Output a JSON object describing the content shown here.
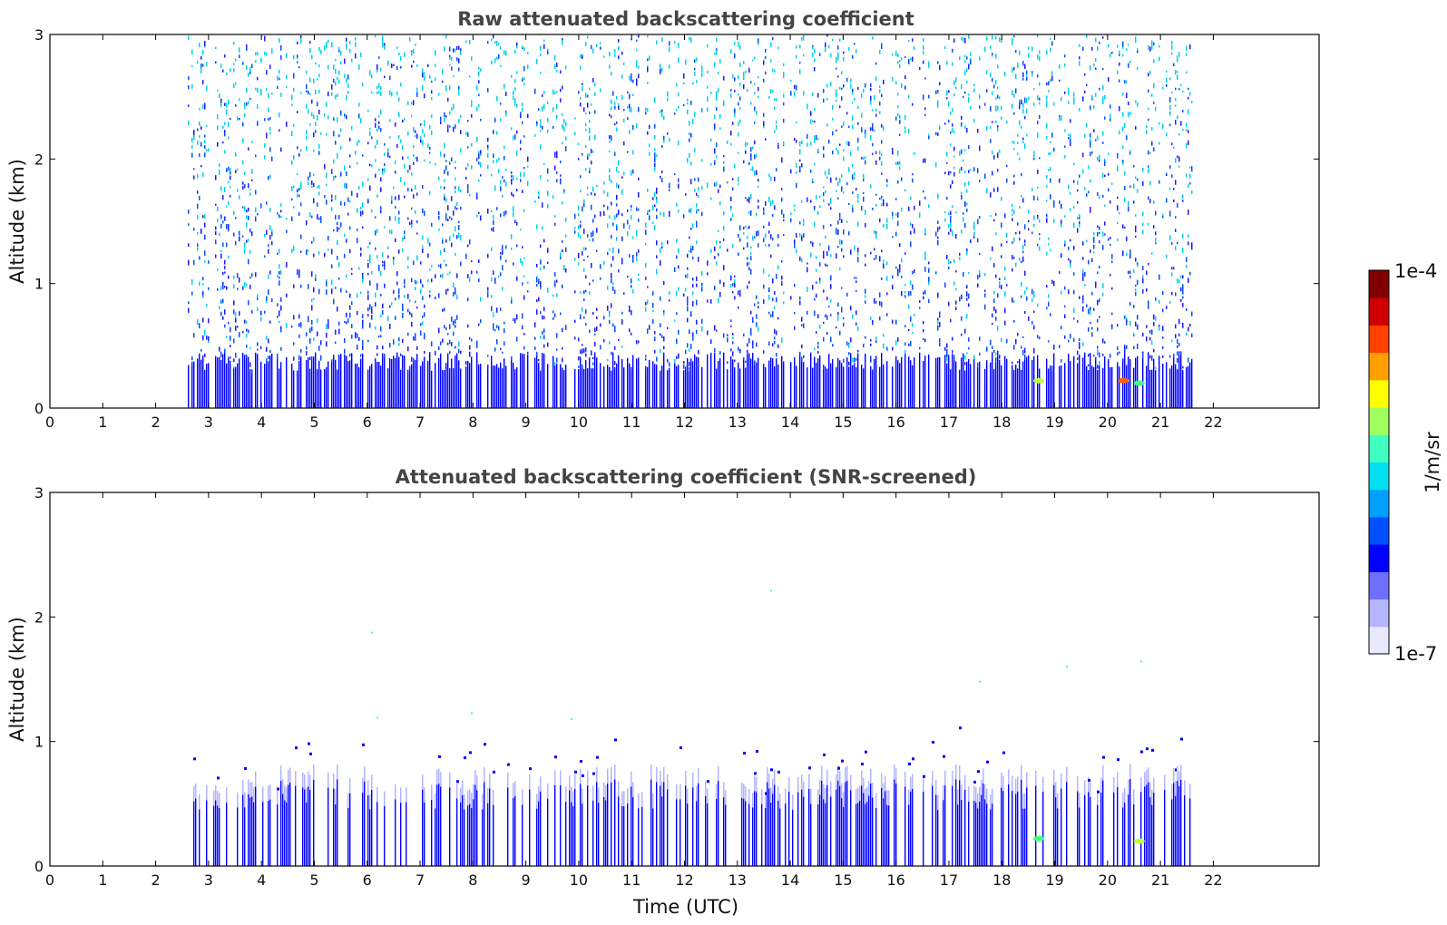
{
  "chart_data": [
    {
      "type": "heatmap",
      "title": "Raw attenuated backscattering coefficient",
      "xlabel": "",
      "ylabel": "Altitude (km)",
      "xlim": [
        0,
        24
      ],
      "ylim": [
        0,
        3
      ],
      "xticks": [
        0,
        1,
        2,
        3,
        4,
        5,
        6,
        7,
        8,
        9,
        10,
        11,
        12,
        13,
        14,
        15,
        16,
        17,
        18,
        19,
        20,
        21,
        22
      ],
      "xtick_labels": [
        "0",
        "1",
        "2",
        "3",
        "4",
        "5",
        "6",
        "7",
        "8",
        "9",
        "10",
        "11",
        "12",
        "13",
        "14",
        "15",
        "16",
        "17",
        "18",
        "19",
        "20",
        "21",
        "22"
      ],
      "yticks": [
        0,
        1,
        2,
        3
      ],
      "ytick_labels": [
        "0",
        "1",
        "2",
        "3"
      ],
      "data_time_range_utc": [
        2.6,
        21.6
      ],
      "description_of_field": "dense vertical profiles up to 3 km; strong blue below ~0.4 km, speckled blue/cyan aloft",
      "hotspots": [
        {
          "time": 18.7,
          "altitude": 0.22,
          "level": "yellow-green"
        },
        {
          "time": 20.3,
          "altitude": 0.22,
          "level": "orange-red"
        },
        {
          "time": 20.6,
          "altitude": 0.2,
          "level": "green"
        }
      ]
    },
    {
      "type": "heatmap",
      "title": "Attenuated backscattering coefficient (SNR-screened)",
      "xlabel": "Time (UTC)",
      "ylabel": "Altitude (km)",
      "xlim": [
        0,
        24
      ],
      "ylim": [
        0,
        3
      ],
      "xticks": [
        0,
        1,
        2,
        3,
        4,
        5,
        6,
        7,
        8,
        9,
        10,
        11,
        12,
        13,
        14,
        15,
        16,
        17,
        18,
        19,
        20,
        21,
        22
      ],
      "xtick_labels": [
        "0",
        "1",
        "2",
        "3",
        "4",
        "5",
        "6",
        "7",
        "8",
        "9",
        "10",
        "11",
        "12",
        "13",
        "14",
        "15",
        "16",
        "17",
        "18",
        "19",
        "20",
        "21",
        "22"
      ],
      "yticks": [
        0,
        1,
        2,
        3
      ],
      "ytick_labels": [
        "0",
        "1",
        "2",
        "3"
      ],
      "data_time_range_utc": [
        2.6,
        21.6
      ],
      "description_of_field": "signal confined below ~0.7-1.0 km (boundary layer); sparse isolated points aloft",
      "hotspots": [
        {
          "time": 18.7,
          "altitude": 0.22,
          "level": "green"
        },
        {
          "time": 20.6,
          "altitude": 0.2,
          "level": "yellow-green"
        }
      ]
    }
  ],
  "colorbar": {
    "label": "1/m/sr",
    "max_label": "1e-4",
    "min_label": "1e-7",
    "scale": "log",
    "range": [
      1e-07,
      0.0001
    ],
    "colors": [
      "#e8e8ff",
      "#b4b4ff",
      "#7070ff",
      "#0000ff",
      "#0050ff",
      "#00a0ff",
      "#00e0f0",
      "#40ffc0",
      "#a0ff60",
      "#ffff00",
      "#ffa000",
      "#ff4000",
      "#d00000",
      "#800000"
    ]
  }
}
